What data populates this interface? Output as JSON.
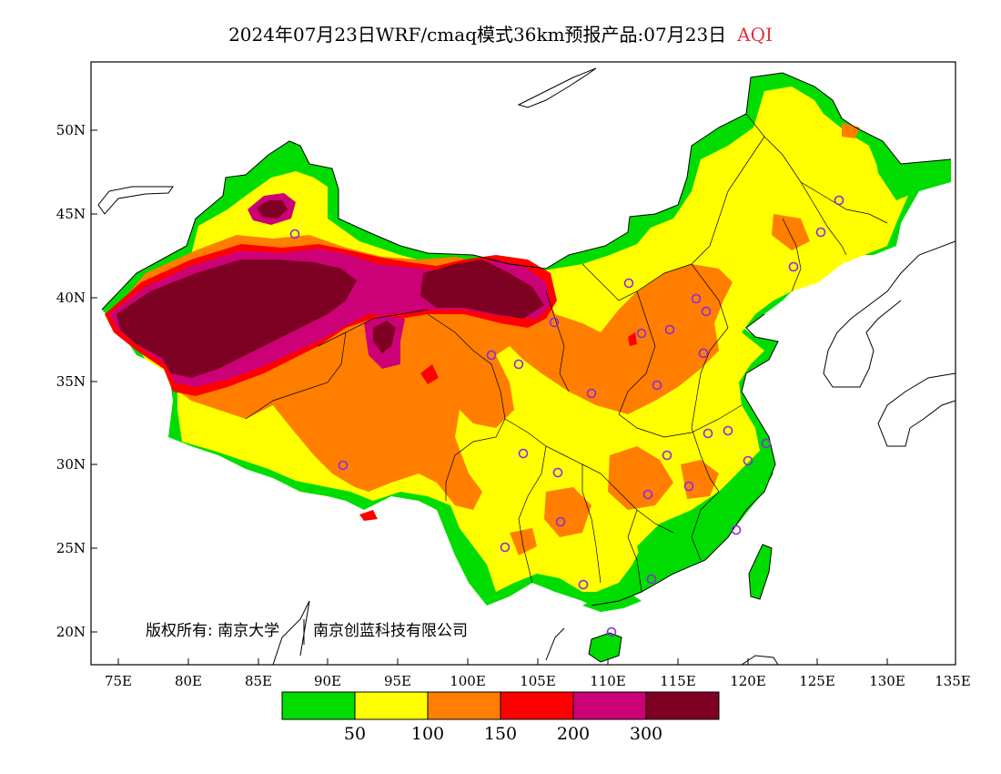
{
  "title": {
    "main": "2024年07月23日WRF/cmaq模式36km预报产品:07月23日",
    "variable": "AQI"
  },
  "axes": {
    "lat_ticks": [
      "20N",
      "25N",
      "30N",
      "35N",
      "40N",
      "45N",
      "50N"
    ],
    "lon_ticks": [
      "75E",
      "80E",
      "85E",
      "90E",
      "95E",
      "100E",
      "105E",
      "110E",
      "115E",
      "120E",
      "125E",
      "130E",
      "135E"
    ]
  },
  "copyright": {
    "left": "版权所有: 南京大学",
    "right": "南京创蓝科技有限公司"
  },
  "legend": {
    "colors": [
      "#00dc00",
      "#ffff00",
      "#ff7e00",
      "#ff0000",
      "#cc0077",
      "#7e0023"
    ],
    "labels": [
      "50",
      "100",
      "150",
      "200",
      "300"
    ]
  },
  "colors": {
    "good": "#00dc00",
    "moderate": "#ffff00",
    "usg": "#ff7e00",
    "unhealthy": "#ff0000",
    "very_unhealthy": "#cc0077",
    "hazardous": "#7e0023",
    "city_marker": "#8a2be2"
  }
}
